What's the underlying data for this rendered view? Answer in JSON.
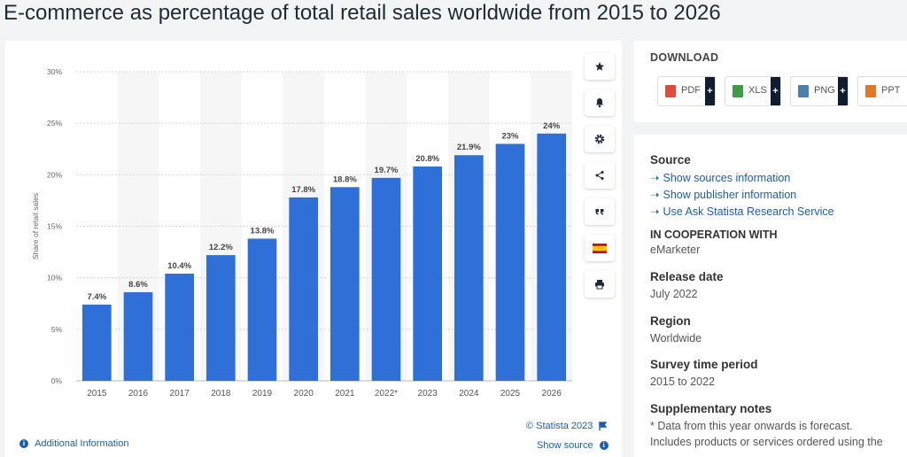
{
  "page": {
    "title": "E-commerce as percentage of total retail sales worldwide from 2015 to 2026"
  },
  "chart_data": {
    "type": "bar",
    "title": "",
    "xlabel": "",
    "ylabel": "Share of retail sales",
    "categories": [
      "2015",
      "2016",
      "2017",
      "2018",
      "2019",
      "2020",
      "2021",
      "2022*",
      "2023",
      "2024",
      "2025",
      "2026"
    ],
    "values": [
      7.4,
      8.6,
      10.4,
      12.2,
      13.8,
      17.8,
      18.8,
      19.7,
      20.8,
      21.9,
      23,
      24
    ],
    "data_labels": [
      "7.4%",
      "8.6%",
      "10.4%",
      "12.2%",
      "13.8%",
      "17.8%",
      "18.8%",
      "19.7%",
      "20.8%",
      "21.9%",
      "23%",
      "24%"
    ],
    "ylim": [
      0,
      30
    ],
    "yticks": [
      0,
      5,
      10,
      15,
      20,
      25,
      30
    ],
    "ytick_labels": [
      "0%",
      "5%",
      "10%",
      "15%",
      "20%",
      "25%",
      "30%"
    ],
    "grid": true,
    "bar_color": "#2e6fd8"
  },
  "chart_footer": {
    "additional_info": "Additional Information",
    "copyright": "© Statista 2023",
    "show_source": "Show source"
  },
  "toolbar": {
    "icons": [
      "star-icon",
      "bell-icon",
      "gear-icon",
      "share-icon",
      "quote-icon",
      "spain-flag-icon",
      "print-icon"
    ]
  },
  "download": {
    "title": "DOWNLOAD",
    "buttons": [
      {
        "label": "PDF",
        "color": "#e04a3f"
      },
      {
        "label": "XLS",
        "color": "#3f9b45"
      },
      {
        "label": "PNG",
        "color": "#4a7fb0"
      },
      {
        "label": "PPT",
        "color": "#e0772a"
      }
    ],
    "plus": "+"
  },
  "info": {
    "source_title": "Source",
    "source_links": [
      "Show sources information",
      "Show publisher information",
      "Use Ask Statista Research Service"
    ],
    "cooperation_title": "IN COOPERATION WITH",
    "cooperation_value": "eMarketer",
    "release_title": "Release date",
    "release_value": "July 2022",
    "region_title": "Region",
    "region_value": "Worldwide",
    "survey_title": "Survey time period",
    "survey_value": "2015 to 2022",
    "notes_title": "Supplementary notes",
    "notes_line1": "* Data from this year onwards is forecast.",
    "notes_line2": "Includes products or services ordered using the"
  }
}
